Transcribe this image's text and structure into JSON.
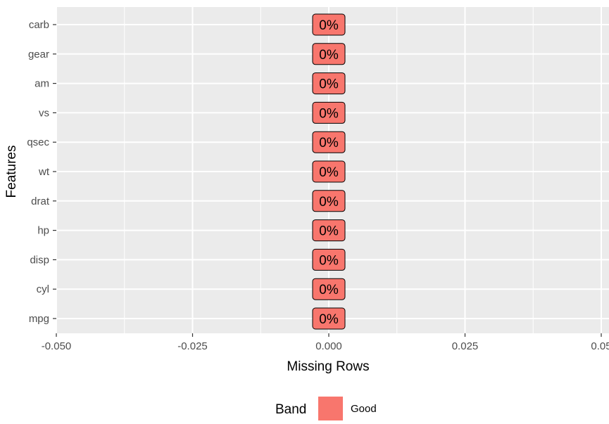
{
  "chart_data": {
    "type": "bar",
    "orientation": "horizontal",
    "categories": [
      "mpg",
      "cyl",
      "disp",
      "hp",
      "drat",
      "wt",
      "qsec",
      "vs",
      "am",
      "gear",
      "carb"
    ],
    "values": [
      0,
      0,
      0,
      0,
      0,
      0,
      0,
      0,
      0,
      0,
      0
    ],
    "labels": [
      "0%",
      "0%",
      "0%",
      "0%",
      "0%",
      "0%",
      "0%",
      "0%",
      "0%",
      "0%",
      "0%"
    ],
    "xlabel": "Missing Rows",
    "ylabel": "Features",
    "xlim": [
      -0.05,
      0.05
    ],
    "x_ticks": [
      "-0.050",
      "-0.025",
      "0.000",
      "0.025",
      "0.05"
    ],
    "x_tick_values": [
      -0.05,
      -0.025,
      0,
      0.025,
      0.05
    ],
    "grid": true,
    "legend": {
      "title": "Band",
      "position": "bottom",
      "entries": [
        {
          "name": "Good",
          "color": "#F8766D"
        }
      ]
    },
    "colors": {
      "panel": "#EBEBEB",
      "grid": "#FFFFFF",
      "fill": "#F8766D"
    }
  }
}
